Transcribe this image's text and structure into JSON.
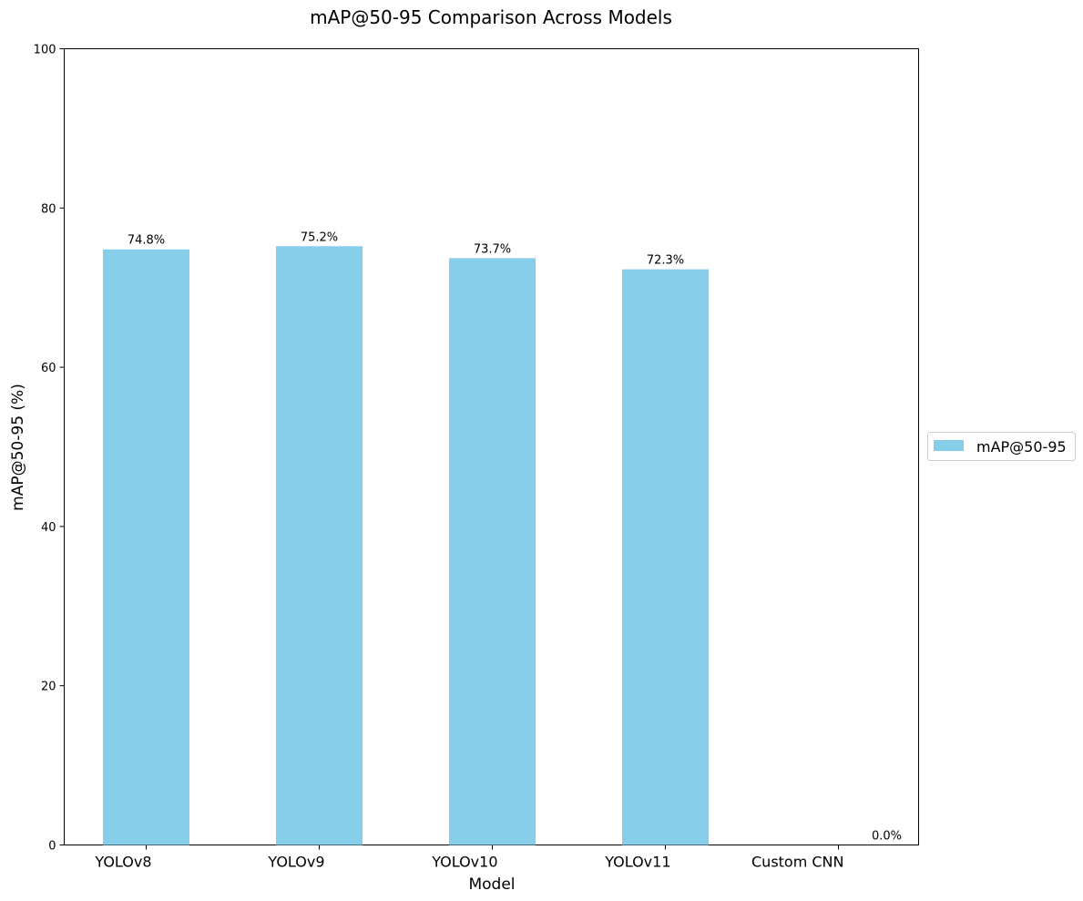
{
  "chart_data": {
    "type": "bar",
    "title": "mAP@50-95 Comparison Across Models",
    "xlabel": "Model",
    "ylabel": "mAP@50-95 (%)",
    "ylim": [
      0,
      100
    ],
    "yticks": [
      0,
      20,
      40,
      60,
      80,
      100
    ],
    "categories": [
      "YOLOv8",
      "YOLOv9",
      "YOLOv10",
      "YOLOv11",
      "Custom CNN"
    ],
    "series": [
      {
        "name": "mAP@50-95",
        "values": [
          74.8,
          75.2,
          73.7,
          72.3,
          0.0
        ],
        "labels": [
          "74.8%",
          "75.2%",
          "73.7%",
          "72.3%",
          "0.0%"
        ]
      }
    ],
    "bar_color": "#87CEEB",
    "legend_position": "center-right, outside plot",
    "grid": false
  }
}
